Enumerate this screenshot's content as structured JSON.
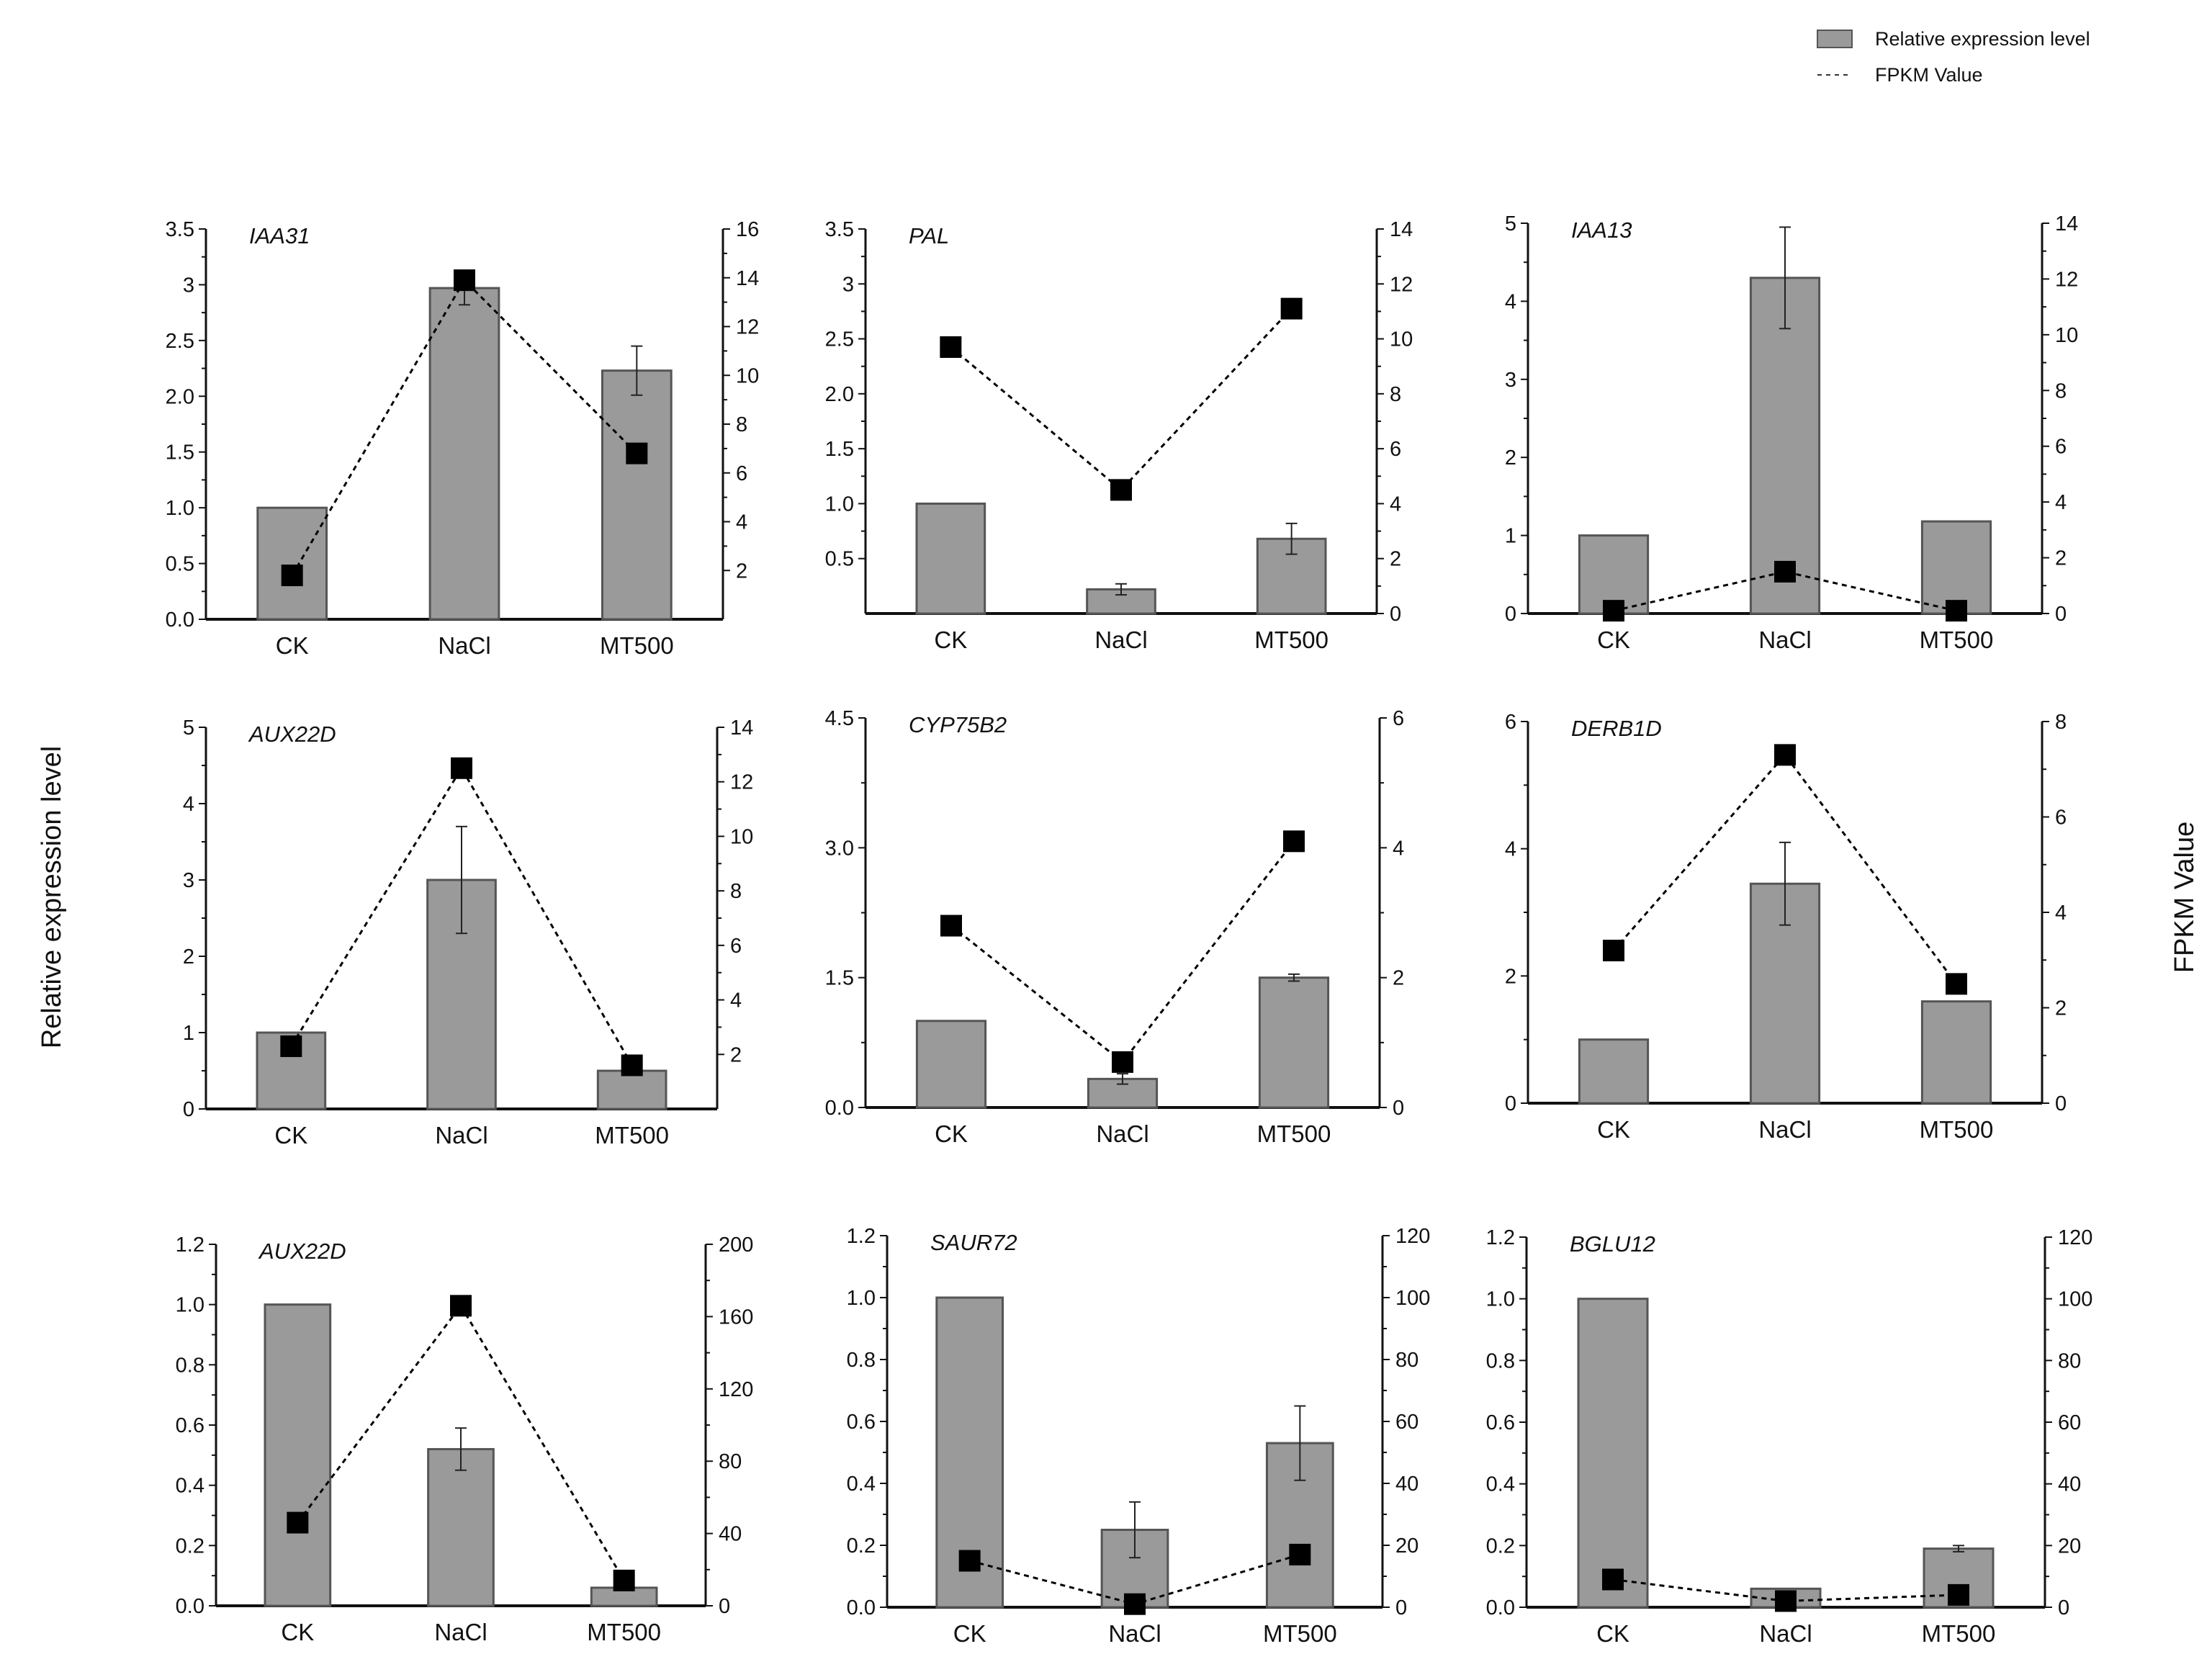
{
  "figure": {
    "y_left_title": "Relative expression level",
    "y_right_title": "FPKM Value",
    "legend": [
      {
        "label": "Relative expression level",
        "kind": "bar"
      },
      {
        "label": "FPKM Value",
        "kind": "dashed-line"
      }
    ],
    "colors": {
      "bar_fill": "#9a9a9a",
      "bar_edge": "#555555",
      "axis": "#111111",
      "marker": "#000000",
      "line": "#000000"
    }
  },
  "chart_data": [
    {
      "type": "bar",
      "title": "IAA31",
      "categories": [
        "CK",
        "NaCl",
        "MT500"
      ],
      "series": [
        {
          "name": "Relative expression level",
          "axis": "left",
          "values": [
            1.0,
            2.97,
            2.23
          ],
          "errors": [
            0,
            0.15,
            0.22
          ]
        },
        {
          "name": "FPKM Value",
          "axis": "right",
          "type": "line",
          "values": [
            1.8,
            13.9,
            6.8
          ]
        }
      ],
      "ylim": [
        0,
        3.5
      ],
      "y_ticks": [
        "0.0",
        "0.5",
        "1.0",
        "1.5",
        "2.0",
        "2.5",
        "3",
        "3.5"
      ],
      "y2lim": [
        0,
        16
      ],
      "y2_ticks": [
        "2",
        "4",
        "6",
        "8",
        "10",
        "12",
        "14",
        "16"
      ],
      "y2_tick_values": [
        2,
        4,
        6,
        8,
        10,
        12,
        14,
        16
      ]
    },
    {
      "type": "bar",
      "title": "PAL",
      "categories": [
        "CK",
        "NaCl",
        "MT500"
      ],
      "series": [
        {
          "name": "Relative expression level",
          "axis": "left",
          "values": [
            1.0,
            0.22,
            0.68
          ],
          "errors": [
            0,
            0.05,
            0.14
          ]
        },
        {
          "name": "FPKM Value",
          "axis": "right",
          "type": "line",
          "values": [
            9.7,
            4.5,
            11.1
          ]
        }
      ],
      "ylim": [
        0,
        3.5
      ],
      "y_ticks": [
        "0.5",
        "1.0",
        "1.5",
        "2.0",
        "2.5",
        "3",
        "3.5"
      ],
      "y_tick_values": [
        0.5,
        1,
        1.5,
        2,
        2.5,
        3,
        3.5
      ],
      "y2lim": [
        0,
        14
      ],
      "y2_ticks": [
        "0",
        "2",
        "4",
        "6",
        "8",
        "10",
        "12",
        "14"
      ]
    },
    {
      "type": "bar",
      "title": "IAA13",
      "categories": [
        "CK",
        "NaCl",
        "MT500"
      ],
      "series": [
        {
          "name": "Relative expression level",
          "axis": "left",
          "values": [
            1.0,
            4.3,
            1.18
          ],
          "errors": [
            0,
            0.65,
            0
          ]
        },
        {
          "name": "FPKM Value",
          "axis": "right",
          "type": "line",
          "values": [
            0.1,
            1.5,
            0.1
          ]
        }
      ],
      "ylim": [
        0,
        5
      ],
      "y_ticks": [
        "0",
        "1",
        "2",
        "3",
        "4",
        "5"
      ],
      "y2lim": [
        0,
        14
      ],
      "y2_ticks": [
        "0",
        "2",
        "4",
        "6",
        "8",
        "10",
        "12",
        "14"
      ]
    },
    {
      "type": "bar",
      "title": "AUX22D",
      "categories": [
        "CK",
        "NaCl",
        "MT500"
      ],
      "series": [
        {
          "name": "Relative expression level",
          "axis": "left",
          "values": [
            1.0,
            3.0,
            0.5
          ],
          "errors": [
            0,
            0.7,
            0
          ]
        },
        {
          "name": "FPKM Value",
          "axis": "right",
          "type": "line",
          "values": [
            2.3,
            12.5,
            1.6
          ]
        }
      ],
      "ylim": [
        0,
        5
      ],
      "y_ticks": [
        "0",
        "1",
        "2",
        "3",
        "4",
        "5"
      ],
      "y2lim": [
        0,
        14
      ],
      "y2_ticks": [
        "2",
        "4",
        "6",
        "8",
        "10",
        "12",
        "14"
      ],
      "y2_tick_values": [
        2,
        4,
        6,
        8,
        10,
        12,
        14
      ]
    },
    {
      "type": "bar",
      "title": "CYP75B2",
      "categories": [
        "CK",
        "NaCl",
        "MT500"
      ],
      "series": [
        {
          "name": "Relative expression level",
          "axis": "left",
          "values": [
            1.0,
            0.33,
            1.5
          ],
          "errors": [
            0,
            0.06,
            0.04
          ]
        },
        {
          "name": "FPKM Value",
          "axis": "right",
          "type": "line",
          "values": [
            2.8,
            0.7,
            4.1
          ]
        }
      ],
      "ylim": [
        0,
        4.5
      ],
      "y_ticks": [
        "0.0",
        "1.5",
        "3.0",
        "4.5"
      ],
      "y2lim": [
        0,
        6
      ],
      "y2_ticks": [
        "0",
        "2",
        "4",
        "6"
      ]
    },
    {
      "type": "bar",
      "title": "DERB1D",
      "categories": [
        "CK",
        "NaCl",
        "MT500"
      ],
      "series": [
        {
          "name": "Relative expression level",
          "axis": "left",
          "values": [
            1.0,
            3.45,
            1.6
          ],
          "errors": [
            0,
            0.65,
            0
          ]
        },
        {
          "name": "FPKM Value",
          "axis": "right",
          "type": "line",
          "values": [
            3.2,
            7.3,
            2.5
          ]
        }
      ],
      "ylim": [
        0,
        6
      ],
      "y_ticks": [
        "0",
        "2",
        "4",
        "6"
      ],
      "y2lim": [
        0,
        8
      ],
      "y2_ticks": [
        "0",
        "2",
        "4",
        "6",
        "8"
      ]
    },
    {
      "type": "bar",
      "title": "AUX22D",
      "categories": [
        "CK",
        "NaCl",
        "MT500"
      ],
      "series": [
        {
          "name": "Relative expression level",
          "axis": "left",
          "values": [
            1.0,
            0.52,
            0.06
          ],
          "errors": [
            0,
            0.07,
            0
          ]
        },
        {
          "name": "FPKM Value",
          "axis": "right",
          "type": "line",
          "values": [
            46,
            166,
            14
          ]
        }
      ],
      "ylim": [
        0,
        1.2
      ],
      "y_ticks": [
        "0.0",
        "0.2",
        "0.4",
        "0.6",
        "0.8",
        "1.0",
        "1.2"
      ],
      "y2lim": [
        0,
        200
      ],
      "y2_ticks": [
        "0",
        "40",
        "80",
        "120",
        "160",
        "200"
      ]
    },
    {
      "type": "bar",
      "title": "SAUR72",
      "categories": [
        "CK",
        "NaCl",
        "MT500"
      ],
      "series": [
        {
          "name": "Relative expression level",
          "axis": "left",
          "values": [
            1.0,
            0.25,
            0.53
          ],
          "errors": [
            0,
            0.09,
            0.12
          ]
        },
        {
          "name": "FPKM Value",
          "axis": "right",
          "type": "line",
          "values": [
            15,
            1,
            17
          ]
        }
      ],
      "ylim": [
        0,
        1.2
      ],
      "y_ticks": [
        "0.0",
        "0.2",
        "0.4",
        "0.6",
        "0.8",
        "1.0",
        "1.2"
      ],
      "y2lim": [
        0,
        120
      ],
      "y2_ticks": [
        "0",
        "20",
        "40",
        "60",
        "80",
        "100",
        "120"
      ]
    },
    {
      "type": "bar",
      "title": "BGLU12",
      "categories": [
        "CK",
        "NaCl",
        "MT500"
      ],
      "series": [
        {
          "name": "Relative expression level",
          "axis": "left",
          "values": [
            1.0,
            0.06,
            0.19
          ],
          "errors": [
            0,
            0,
            0.01
          ]
        },
        {
          "name": "FPKM Value",
          "axis": "right",
          "type": "line",
          "values": [
            9,
            2,
            4
          ]
        }
      ],
      "ylim": [
        0,
        1.2
      ],
      "y_ticks": [
        "0.0",
        "0.2",
        "0.4",
        "0.6",
        "0.8",
        "1.0",
        "1.2"
      ],
      "y2lim": [
        0,
        120
      ],
      "y2_ticks": [
        "0",
        "20",
        "40",
        "60",
        "80",
        "100",
        "120"
      ]
    }
  ]
}
